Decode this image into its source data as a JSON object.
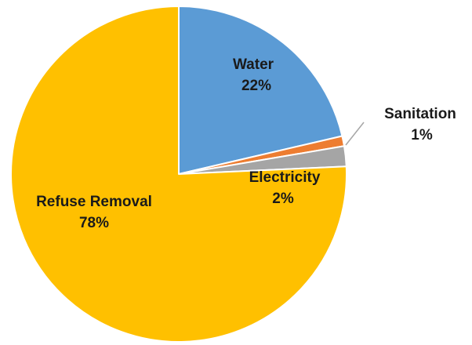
{
  "chart_data": {
    "type": "pie",
    "categories": [
      "Water",
      "Sanitation",
      "Electricity",
      "Refuse Removal"
    ],
    "values": [
      22,
      1,
      2,
      78
    ],
    "value_labels": [
      "22%",
      "1%",
      "2%",
      "78%"
    ],
    "colors": [
      "#5B9BD5",
      "#ED7D31",
      "#A5A5A5",
      "#FFC000"
    ],
    "start_angle_deg": 0,
    "direction": "clockwise",
    "title": "",
    "legend": "none"
  }
}
